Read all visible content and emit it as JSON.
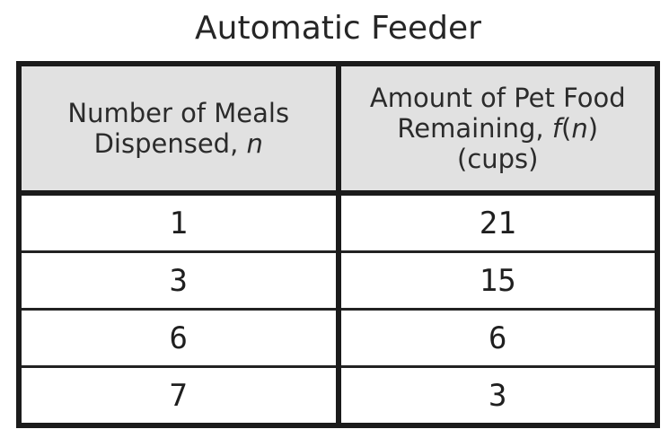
{
  "figure": {
    "title": "Automatic Feeder",
    "columns": [
      {
        "line1": "Number of Meals",
        "line2_prefix": "Dispensed, ",
        "line2_var": "n"
      },
      {
        "line1": "Amount of Pet Food",
        "line2_prefix": "Remaining, ",
        "f_var": "f",
        "open_paren": "(",
        "n_var": "n",
        "close_paren": ")",
        "line3": "(cups)"
      }
    ],
    "rows": [
      {
        "n": "1",
        "fn": "21"
      },
      {
        "n": "3",
        "fn": "15"
      },
      {
        "n": "6",
        "fn": "6"
      },
      {
        "n": "7",
        "fn": "3"
      }
    ],
    "colors": {
      "border": "#1b1b1b",
      "header_bg": "#e1e1e1",
      "text": "#2b2b2b",
      "background": "#ffffff"
    }
  },
  "chart_data": {
    "type": "table",
    "title": "Automatic Feeder",
    "columns": [
      "Number of Meals Dispensed, n",
      "Amount of Pet Food Remaining, f(n) (cups)"
    ],
    "rows": [
      [
        1,
        21
      ],
      [
        3,
        15
      ],
      [
        6,
        6
      ],
      [
        7,
        3
      ]
    ]
  }
}
